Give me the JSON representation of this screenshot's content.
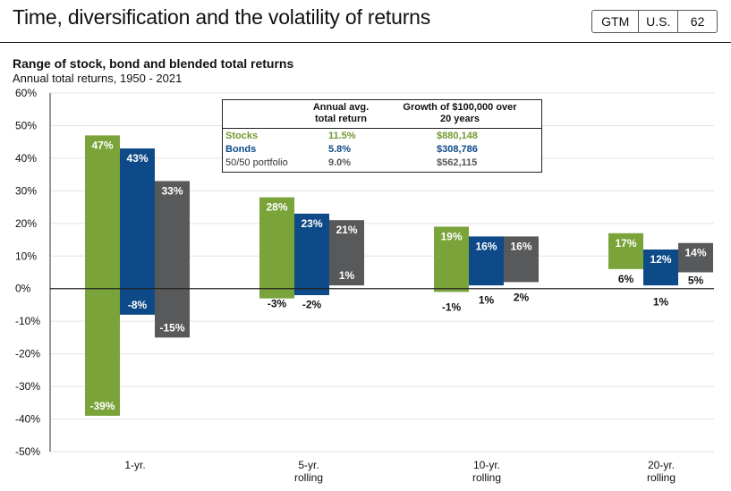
{
  "header": {
    "title": "Time, diversification and the volatility of returns",
    "badge": [
      "GTM",
      "U.S.",
      "62"
    ]
  },
  "chart_data": {
    "type": "bar",
    "subtitle": "Range of stock, bond and blended total returns",
    "subsubtitle": "Annual total returns, 1950 - 2021",
    "ylim": [
      -50,
      60
    ],
    "ytick_labels": [
      "60%",
      "50%",
      "40%",
      "30%",
      "20%",
      "10%",
      "0%",
      "-10%",
      "-20%",
      "-30%",
      "-40%",
      "-50%"
    ],
    "categories": [
      "1-yr.",
      "5-yr.\nrolling",
      "10-yr.\nrolling",
      "20-yr.\nrolling"
    ],
    "series": [
      {
        "name": "Stocks",
        "color": "#7aa33a",
        "max": [
          47,
          28,
          19,
          17
        ],
        "min": [
          -39,
          -3,
          -1,
          6
        ],
        "max_labels": [
          "47%",
          "28%",
          "19%",
          "17%"
        ],
        "min_labels": [
          "-39%",
          "-3%",
          "-1%",
          "6%"
        ]
      },
      {
        "name": "Bonds",
        "color": "#0e4a87",
        "max": [
          43,
          23,
          16,
          12
        ],
        "min": [
          -8,
          -2,
          1,
          1
        ],
        "max_labels": [
          "43%",
          "23%",
          "16%",
          "12%"
        ],
        "min_labels": [
          "-8%",
          "-2%",
          "1%",
          "1%"
        ]
      },
      {
        "name": "50/50 portfolio",
        "color": "#58595b",
        "max": [
          33,
          21,
          16,
          14
        ],
        "min": [
          -15,
          1,
          2,
          5
        ],
        "max_labels": [
          "33%",
          "21%",
          "16%",
          "14%"
        ],
        "min_labels": [
          "-15%",
          "1%",
          "2%",
          "5%"
        ]
      }
    ],
    "table": {
      "headers": [
        "Annual avg.\ntotal return",
        "Growth of $100,000 over\n20 years"
      ],
      "rows": [
        {
          "name": "Stocks",
          "avg": "11.5%",
          "growth": "$880,148",
          "color": "#6f9a2f"
        },
        {
          "name": "Bonds",
          "avg": "5.8%",
          "growth": "$308,786",
          "color": "#0e4a87"
        },
        {
          "name": "50/50 portfolio",
          "avg": "9.0%",
          "growth": "$562,115",
          "color": "#555555"
        }
      ]
    },
    "grid": true
  }
}
